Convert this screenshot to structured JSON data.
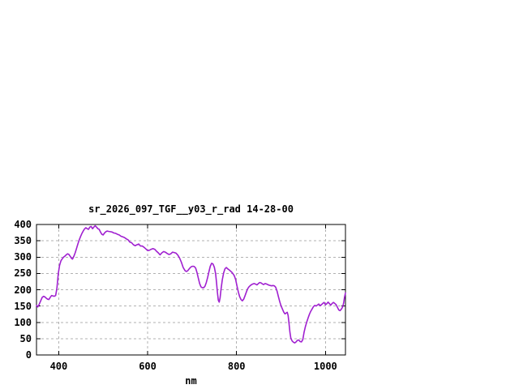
{
  "window": {
    "background": "#ffffff"
  },
  "chart_data": {
    "type": "line",
    "title": "sr_2026_097_TGF__y03_r_rad 14-28-00",
    "xlabel": "nm",
    "ylabel": "",
    "xlim": [
      350,
      1045
    ],
    "ylim": [
      0,
      400
    ],
    "x_ticks": [
      400,
      600,
      800,
      1000
    ],
    "y_ticks": [
      0,
      50,
      100,
      150,
      200,
      250,
      300,
      350,
      400
    ],
    "grid": true,
    "legend_position": "none",
    "line_color": "#a020d0",
    "grid_color": "#b2b2b2",
    "axis_color": "#000000",
    "series": [
      {
        "name": "sr_2026_097_TGF__y03_r_rad",
        "points": [
          [
            350,
            152
          ],
          [
            353,
            147
          ],
          [
            356,
            155
          ],
          [
            360,
            168
          ],
          [
            363,
            177
          ],
          [
            366,
            180
          ],
          [
            369,
            178
          ],
          [
            372,
            174
          ],
          [
            375,
            171
          ],
          [
            378,
            170
          ],
          [
            381,
            177
          ],
          [
            384,
            182
          ],
          [
            387,
            181
          ],
          [
            390,
            180
          ],
          [
            393,
            182
          ],
          [
            396,
            205
          ],
          [
            399,
            250
          ],
          [
            402,
            275
          ],
          [
            405,
            289
          ],
          [
            408,
            295
          ],
          [
            411,
            300
          ],
          [
            414,
            303
          ],
          [
            417,
            307
          ],
          [
            420,
            310
          ],
          [
            423,
            308
          ],
          [
            426,
            302
          ],
          [
            429,
            296
          ],
          [
            431,
            294
          ],
          [
            434,
            302
          ],
          [
            437,
            313
          ],
          [
            440,
            326
          ],
          [
            443,
            340
          ],
          [
            446,
            352
          ],
          [
            449,
            363
          ],
          [
            452,
            372
          ],
          [
            455,
            380
          ],
          [
            458,
            386
          ],
          [
            461,
            390
          ],
          [
            464,
            387
          ],
          [
            467,
            385
          ],
          [
            470,
            392
          ],
          [
            473,
            394
          ],
          [
            476,
            387
          ],
          [
            479,
            392
          ],
          [
            482,
            396
          ],
          [
            485,
            392
          ],
          [
            488,
            387
          ],
          [
            491,
            385
          ],
          [
            494,
            377
          ],
          [
            497,
            370
          ],
          [
            500,
            368
          ],
          [
            503,
            374
          ],
          [
            506,
            378
          ],
          [
            509,
            380
          ],
          [
            512,
            379
          ],
          [
            516,
            378
          ],
          [
            520,
            377
          ],
          [
            524,
            374
          ],
          [
            528,
            373
          ],
          [
            532,
            370
          ],
          [
            536,
            368
          ],
          [
            540,
            364
          ],
          [
            544,
            362
          ],
          [
            548,
            360
          ],
          [
            552,
            356
          ],
          [
            556,
            353
          ],
          [
            560,
            346
          ],
          [
            564,
            344
          ],
          [
            568,
            338
          ],
          [
            572,
            335
          ],
          [
            576,
            338
          ],
          [
            580,
            340
          ],
          [
            584,
            334
          ],
          [
            588,
            334
          ],
          [
            592,
            330
          ],
          [
            596,
            325
          ],
          [
            600,
            320
          ],
          [
            604,
            321
          ],
          [
            608,
            324
          ],
          [
            612,
            326
          ],
          [
            616,
            324
          ],
          [
            620,
            318
          ],
          [
            624,
            313
          ],
          [
            628,
            307
          ],
          [
            632,
            313
          ],
          [
            636,
            317
          ],
          [
            640,
            315
          ],
          [
            644,
            311
          ],
          [
            648,
            308
          ],
          [
            652,
            310
          ],
          [
            656,
            315
          ],
          [
            660,
            314
          ],
          [
            664,
            312
          ],
          [
            668,
            306
          ],
          [
            672,
            297
          ],
          [
            676,
            284
          ],
          [
            680,
            268
          ],
          [
            684,
            259
          ],
          [
            687,
            256
          ],
          [
            690,
            258
          ],
          [
            693,
            263
          ],
          [
            696,
            268
          ],
          [
            699,
            271
          ],
          [
            702,
            272
          ],
          [
            705,
            271
          ],
          [
            708,
            266
          ],
          [
            711,
            253
          ],
          [
            714,
            236
          ],
          [
            717,
            219
          ],
          [
            720,
            209
          ],
          [
            723,
            206
          ],
          [
            726,
            206
          ],
          [
            729,
            211
          ],
          [
            732,
            222
          ],
          [
            735,
            238
          ],
          [
            738,
            256
          ],
          [
            741,
            272
          ],
          [
            744,
            281
          ],
          [
            747,
            279
          ],
          [
            750,
            269
          ],
          [
            753,
            249
          ],
          [
            755,
            222
          ],
          [
            757,
            192
          ],
          [
            759,
            168
          ],
          [
            761,
            162
          ],
          [
            763,
            175
          ],
          [
            765,
            200
          ],
          [
            768,
            230
          ],
          [
            771,
            252
          ],
          [
            774,
            264
          ],
          [
            777,
            268
          ],
          [
            780,
            264
          ],
          [
            783,
            261
          ],
          [
            786,
            258
          ],
          [
            789,
            254
          ],
          [
            792,
            249
          ],
          [
            795,
            243
          ],
          [
            798,
            231
          ],
          [
            801,
            212
          ],
          [
            804,
            193
          ],
          [
            807,
            179
          ],
          [
            810,
            170
          ],
          [
            813,
            166
          ],
          [
            816,
            171
          ],
          [
            819,
            181
          ],
          [
            822,
            193
          ],
          [
            825,
            203
          ],
          [
            828,
            209
          ],
          [
            831,
            213
          ],
          [
            834,
            216
          ],
          [
            837,
            218
          ],
          [
            840,
            219
          ],
          [
            843,
            217
          ],
          [
            846,
            215
          ],
          [
            849,
            219
          ],
          [
            852,
            222
          ],
          [
            855,
            221
          ],
          [
            858,
            218
          ],
          [
            861,
            216
          ],
          [
            864,
            219
          ],
          [
            867,
            218
          ],
          [
            870,
            216
          ],
          [
            873,
            214
          ],
          [
            876,
            213
          ],
          [
            879,
            212
          ],
          [
            882,
            213
          ],
          [
            885,
            212
          ],
          [
            888,
            208
          ],
          [
            891,
            196
          ],
          [
            894,
            180
          ],
          [
            897,
            164
          ],
          [
            900,
            151
          ],
          [
            903,
            141
          ],
          [
            906,
            132
          ],
          [
            909,
            126
          ],
          [
            912,
            129
          ],
          [
            914,
            131
          ],
          [
            916,
            121
          ],
          [
            918,
            97
          ],
          [
            920,
            70
          ],
          [
            922,
            52
          ],
          [
            925,
            43
          ],
          [
            928,
            39
          ],
          [
            931,
            37
          ],
          [
            934,
            40
          ],
          [
            937,
            45
          ],
          [
            940,
            46
          ],
          [
            943,
            41
          ],
          [
            946,
            40
          ],
          [
            949,
            47
          ],
          [
            952,
            70
          ],
          [
            955,
            88
          ],
          [
            958,
            101
          ],
          [
            961,
            114
          ],
          [
            964,
            125
          ],
          [
            967,
            134
          ],
          [
            970,
            141
          ],
          [
            973,
            148
          ],
          [
            976,
            152
          ],
          [
            979,
            150
          ],
          [
            982,
            153
          ],
          [
            985,
            156
          ],
          [
            988,
            151
          ],
          [
            991,
            154
          ],
          [
            994,
            158
          ],
          [
            997,
            161
          ],
          [
            1000,
            154
          ],
          [
            1003,
            157
          ],
          [
            1006,
            162
          ],
          [
            1009,
            157
          ],
          [
            1012,
            153
          ],
          [
            1015,
            158
          ],
          [
            1018,
            161
          ],
          [
            1021,
            158
          ],
          [
            1024,
            154
          ],
          [
            1027,
            146
          ],
          [
            1030,
            138
          ],
          [
            1033,
            136
          ],
          [
            1036,
            141
          ],
          [
            1039,
            148
          ],
          [
            1041,
            160
          ],
          [
            1043,
            178
          ],
          [
            1045,
            190
          ]
        ]
      }
    ]
  }
}
